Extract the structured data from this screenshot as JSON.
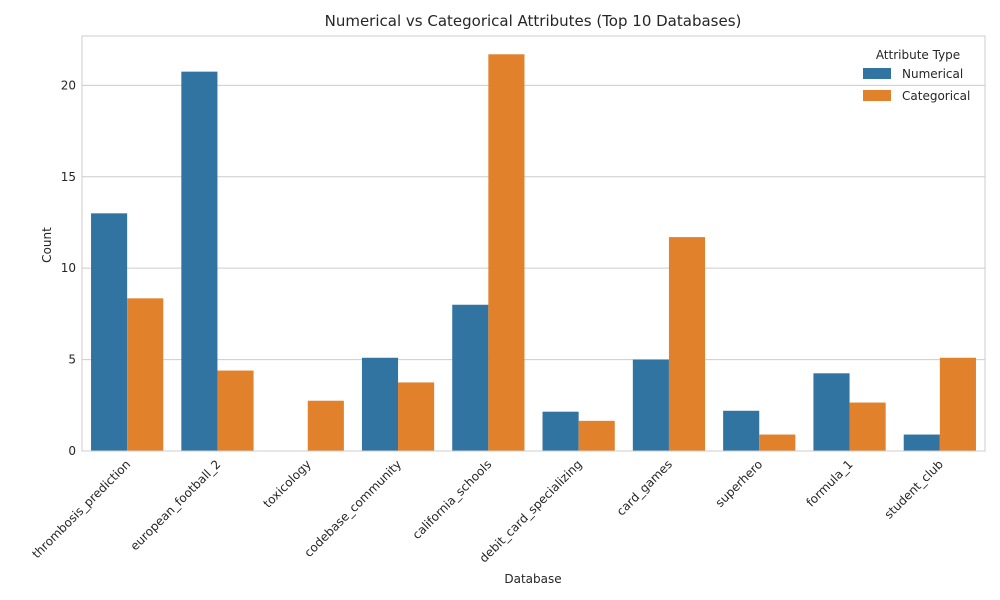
{
  "chart_data": {
    "type": "bar",
    "title": "Numerical vs Categorical Attributes (Top 10 Databases)",
    "xlabel": "Database",
    "ylabel": "Count",
    "ylim": [
      0,
      22.7
    ],
    "yticks": [
      0,
      5,
      10,
      15,
      20
    ],
    "grid": "horizontal",
    "legend": {
      "title": "Attribute Type",
      "placement": "top-right"
    },
    "categories": [
      "thrombosis_prediction",
      "european_football_2",
      "toxicology",
      "codebase_community",
      "california_schools",
      "debit_card_specializing",
      "card_games",
      "superhero",
      "formula_1",
      "student_club"
    ],
    "series": [
      {
        "name": "Numerical",
        "color": "#3274a1",
        "values": [
          13.0,
          20.75,
          0,
          5.1,
          8.0,
          2.15,
          5.0,
          2.2,
          4.25,
          0.9
        ]
      },
      {
        "name": "Categorical",
        "color": "#e1812c",
        "values": [
          8.35,
          4.4,
          2.75,
          3.75,
          21.7,
          1.65,
          11.7,
          0.9,
          2.65,
          5.1
        ]
      }
    ]
  }
}
